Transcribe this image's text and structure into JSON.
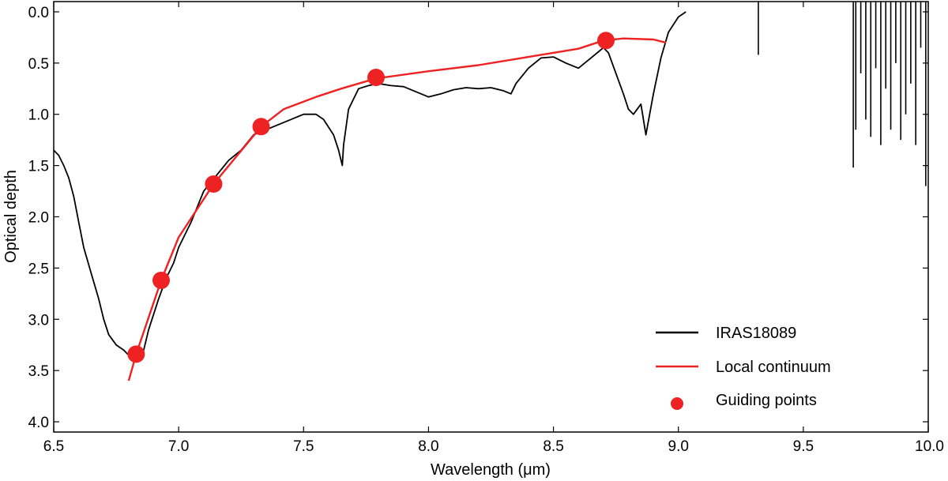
{
  "chart_data": {
    "type": "line",
    "title": "",
    "xlabel": "Wavelength (μm)",
    "ylabel": "Optical depth",
    "xlim": [
      6.5,
      10.0
    ],
    "ylim": [
      4.1,
      -0.1
    ],
    "y_inverted": true,
    "grid": false,
    "legend_position": "bottom-right",
    "xticks": [
      "6.5",
      "7.0",
      "7.5",
      "8.0",
      "8.5",
      "9.0",
      "9.5",
      "10.0"
    ],
    "yticks": [
      "0.0",
      "0.5",
      "1.0",
      "1.5",
      "2.0",
      "2.5",
      "3.0",
      "3.5",
      "4.0"
    ],
    "series": [
      {
        "name": "IRAS18089",
        "kind": "line",
        "color": "#000000",
        "x": [
          6.5,
          6.52,
          6.54,
          6.56,
          6.58,
          6.6,
          6.62,
          6.65,
          6.68,
          6.7,
          6.72,
          6.75,
          6.78,
          6.8,
          6.82,
          6.84,
          6.86,
          6.88,
          6.9,
          6.92,
          6.95,
          6.98,
          7.0,
          7.05,
          7.1,
          7.15,
          7.2,
          7.25,
          7.3,
          7.35,
          7.4,
          7.45,
          7.5,
          7.55,
          7.58,
          7.62,
          7.64,
          7.655,
          7.66,
          7.68,
          7.72,
          7.76,
          7.8,
          7.85,
          7.9,
          7.95,
          8.0,
          8.05,
          8.1,
          8.15,
          8.2,
          8.25,
          8.3,
          8.33,
          8.35,
          8.4,
          8.45,
          8.5,
          8.55,
          8.6,
          8.65,
          8.7,
          8.72,
          8.75,
          8.78,
          8.8,
          8.82,
          8.85,
          8.87,
          8.9,
          8.93,
          8.96,
          9.0,
          9.03
        ],
        "y": [
          1.35,
          1.4,
          1.5,
          1.62,
          1.8,
          2.05,
          2.3,
          2.55,
          2.8,
          3.0,
          3.15,
          3.25,
          3.3,
          3.35,
          3.38,
          3.4,
          3.3,
          3.1,
          2.95,
          2.8,
          2.6,
          2.45,
          2.3,
          2.05,
          1.75,
          1.6,
          1.45,
          1.35,
          1.2,
          1.15,
          1.1,
          1.05,
          1.0,
          1.0,
          1.05,
          1.2,
          1.35,
          1.5,
          1.3,
          0.95,
          0.75,
          0.72,
          0.7,
          0.72,
          0.73,
          0.78,
          0.83,
          0.8,
          0.76,
          0.74,
          0.75,
          0.74,
          0.77,
          0.8,
          0.7,
          0.55,
          0.45,
          0.44,
          0.5,
          0.55,
          0.45,
          0.35,
          0.4,
          0.6,
          0.8,
          0.95,
          1.0,
          0.9,
          1.2,
          0.8,
          0.45,
          0.2,
          0.05,
          0.0
        ]
      },
      {
        "name": "Local continuum",
        "kind": "line",
        "color": "#ee2222",
        "x": [
          6.8,
          6.83,
          6.93,
          7.0,
          7.14,
          7.33,
          7.42,
          7.55,
          7.65,
          7.79,
          8.0,
          8.2,
          8.4,
          8.6,
          8.7,
          8.78,
          8.9,
          8.95
        ],
        "y": [
          3.6,
          3.34,
          2.62,
          2.2,
          1.68,
          1.12,
          0.95,
          0.83,
          0.75,
          0.65,
          0.58,
          0.52,
          0.44,
          0.36,
          0.28,
          0.26,
          0.27,
          0.3
        ]
      },
      {
        "name": "Guiding points",
        "kind": "scatter",
        "color": "#ee2222",
        "x": [
          6.83,
          6.93,
          7.14,
          7.33,
          7.79,
          8.71
        ],
        "y": [
          3.34,
          2.62,
          1.68,
          1.12,
          0.64,
          0.28
        ]
      }
    ],
    "absorption_lines": [
      {
        "x": 9.32,
        "y_bottom": 0.42
      },
      {
        "x": 9.7,
        "y_bottom": 1.52
      },
      {
        "x": 9.71,
        "y_bottom": 1.15
      },
      {
        "x": 9.73,
        "y_bottom": 0.6
      },
      {
        "x": 9.75,
        "y_bottom": 1.05
      },
      {
        "x": 9.77,
        "y_bottom": 1.22
      },
      {
        "x": 9.79,
        "y_bottom": 0.55
      },
      {
        "x": 9.81,
        "y_bottom": 1.3
      },
      {
        "x": 9.83,
        "y_bottom": 0.75
      },
      {
        "x": 9.85,
        "y_bottom": 1.15
      },
      {
        "x": 9.87,
        "y_bottom": 0.5
      },
      {
        "x": 9.89,
        "y_bottom": 1.25
      },
      {
        "x": 9.91,
        "y_bottom": 1.0
      },
      {
        "x": 9.93,
        "y_bottom": 0.7
      },
      {
        "x": 9.95,
        "y_bottom": 1.3
      },
      {
        "x": 9.97,
        "y_bottom": 0.35
      },
      {
        "x": 9.99,
        "y_bottom": 1.7
      }
    ]
  }
}
